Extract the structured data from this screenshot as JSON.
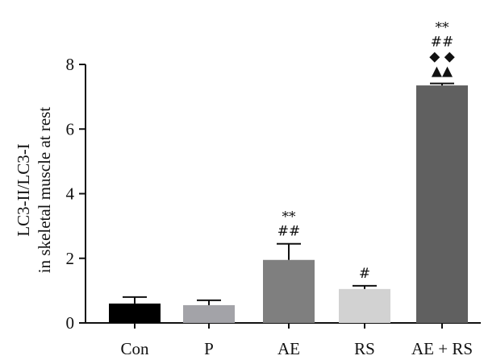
{
  "chart_data": {
    "type": "bar",
    "categories": [
      "Con",
      "P",
      "AE",
      "RS",
      "AE + RS"
    ],
    "values": [
      0.6,
      0.55,
      1.95,
      1.05,
      7.35
    ],
    "errors": [
      0.2,
      0.15,
      0.5,
      0.1,
      0.06
    ],
    "colors": [
      "#000000",
      "#a3a3a8",
      "#7f7f7f",
      "#d2d2d2",
      "#606060"
    ],
    "ylabel_line1": "LC3-II/LC3-I",
    "ylabel_line2": "in skeletal muscle at rest",
    "ylim": [
      0,
      8
    ],
    "yticks": [
      0,
      2,
      4,
      6,
      8
    ],
    "grid": false,
    "significance": [
      [],
      [],
      [
        "**",
        "##"
      ],
      [
        "#"
      ],
      [
        "**",
        "##",
        "◆ ◆",
        "▲▲"
      ]
    ]
  }
}
